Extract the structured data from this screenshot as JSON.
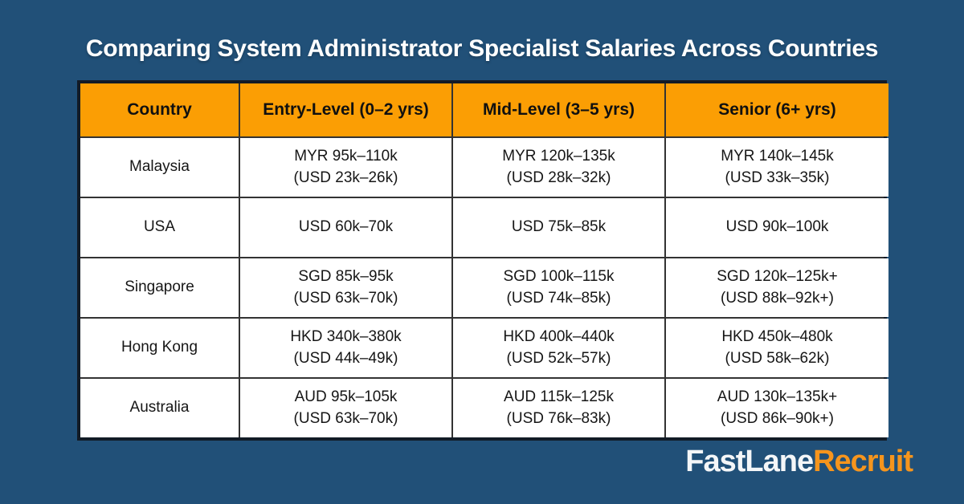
{
  "page": {
    "title": "Comparing System Administrator Specialist Salaries Across Countries",
    "background_color": "#215078",
    "header_color": "#fb9e04",
    "frame_color": "#121b26"
  },
  "table": {
    "headers": [
      "Country",
      "Entry-Level (0–2 yrs)",
      "Mid-Level (3–5 yrs)",
      "Senior (6+ yrs)"
    ],
    "rows": [
      {
        "country": "Malaysia",
        "cells": [
          {
            "l1": "MYR 95k–110k",
            "l2": "(USD 23k–26k)"
          },
          {
            "l1": "MYR 120k–135k",
            "l2": "(USD 28k–32k)"
          },
          {
            "l1": "MYR 140k–145k",
            "l2": "(USD 33k–35k)"
          }
        ]
      },
      {
        "country": "USA",
        "cells": [
          {
            "l1": "USD 60k–70k",
            "l2": ""
          },
          {
            "l1": "USD 75k–85k",
            "l2": ""
          },
          {
            "l1": "USD 90k–100k",
            "l2": ""
          }
        ]
      },
      {
        "country": "Singapore",
        "cells": [
          {
            "l1": "SGD 85k–95k",
            "l2": "(USD 63k–70k)"
          },
          {
            "l1": "SGD 100k–115k",
            "l2": "(USD 74k–85k)"
          },
          {
            "l1": "SGD 120k–125k+",
            "l2": "(USD 88k–92k+)"
          }
        ]
      },
      {
        "country": "Hong Kong",
        "cells": [
          {
            "l1": "HKD 340k–380k",
            "l2": "(USD 44k–49k)"
          },
          {
            "l1": "HKD 400k–440k",
            "l2": "(USD 52k–57k)"
          },
          {
            "l1": "HKD 450k–480k",
            "l2": "(USD 58k–62k)"
          }
        ]
      },
      {
        "country": "Australia",
        "cells": [
          {
            "l1": "AUD 95k–105k",
            "l2": "(USD 63k–70k)"
          },
          {
            "l1": "AUD 115k–125k",
            "l2": "(USD 76k–83k)"
          },
          {
            "l1": "AUD 130k–135k+",
            "l2": "(USD 86k–90k+)"
          }
        ]
      }
    ]
  },
  "logo": {
    "part1": "FastLane",
    "part2": "Recruit",
    "part1_color": "#f4f6f8",
    "part2_color": "#f6951d"
  },
  "chart_data": {
    "type": "table",
    "title": "Comparing System Administrator Specialist Salaries Across Countries",
    "columns": [
      "Country",
      "Entry-Level (0–2 yrs)",
      "Mid-Level (3–5 yrs)",
      "Senior (6+ yrs)"
    ],
    "rows": [
      [
        "Malaysia",
        "MYR 95k–110k (USD 23k–26k)",
        "MYR 120k–135k (USD 28k–32k)",
        "MYR 140k–145k (USD 33k–35k)"
      ],
      [
        "USA",
        "USD 60k–70k",
        "USD 75k–85k",
        "USD 90k–100k"
      ],
      [
        "Singapore",
        "SGD 85k–95k (USD 63k–70k)",
        "SGD 100k–115k (USD 74k–85k)",
        "SGD 120k–125k+ (USD 88k–92k+)"
      ],
      [
        "Hong Kong",
        "HKD 340k–380k (USD 44k–49k)",
        "HKD 400k–440k (USD 52k–57k)",
        "HKD 450k–480k (USD 58k–62k)"
      ],
      [
        "Australia",
        "AUD 95k–105k (USD 63k–70k)",
        "AUD 115k–125k (USD 76k–83k)",
        "AUD 130k–135k+ (USD 86k–90k+)"
      ]
    ]
  }
}
